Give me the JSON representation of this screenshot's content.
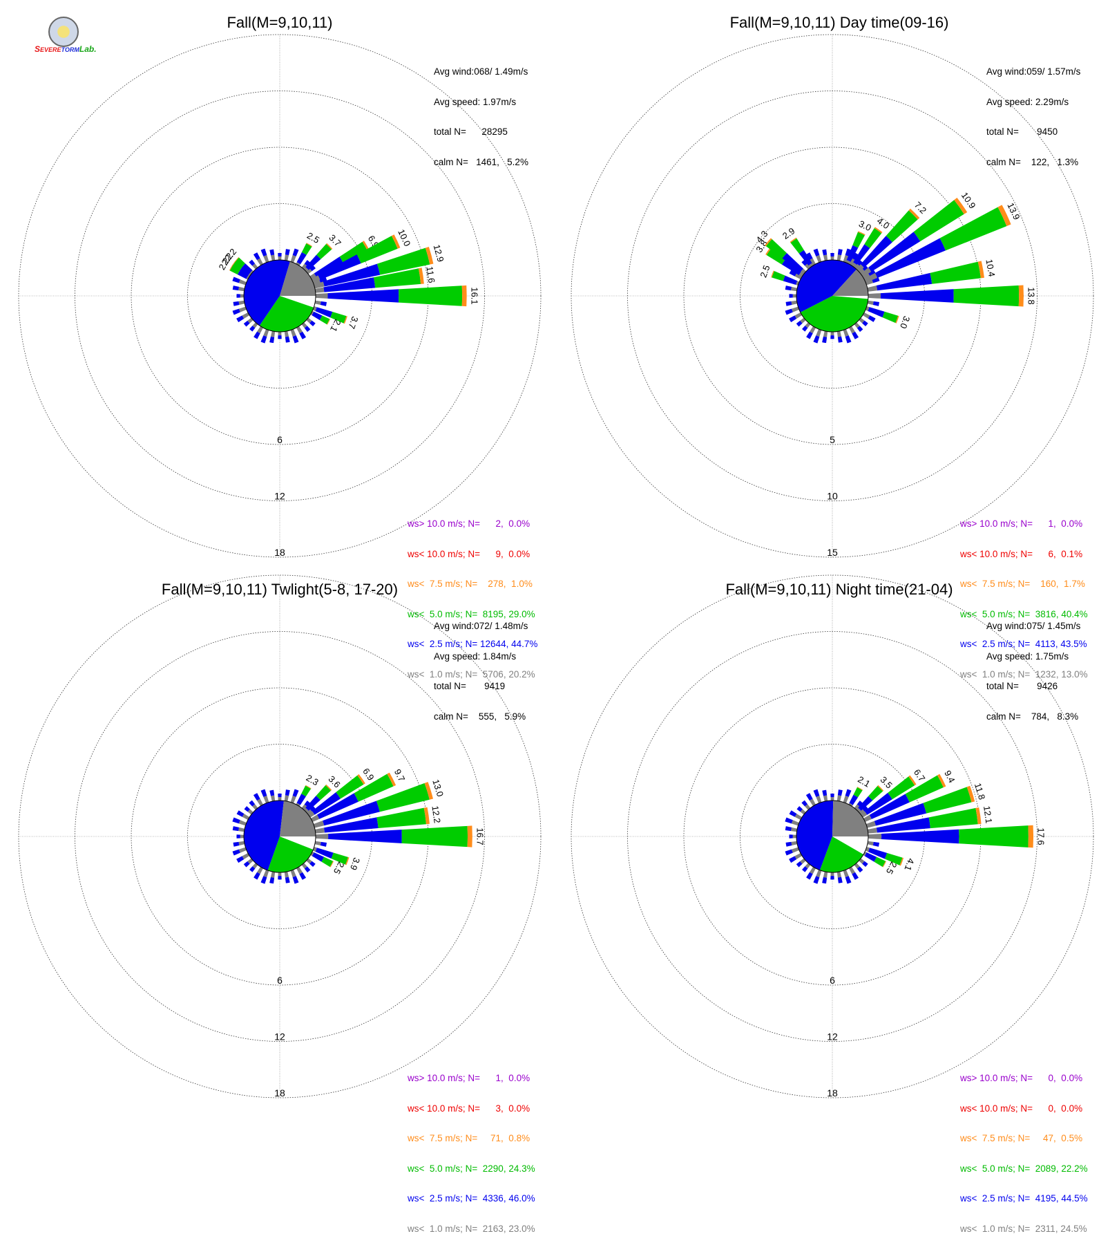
{
  "logo": {
    "brand_prefix": "S",
    "brand_severe": "EVERE",
    "brand_storm": "TORM",
    "brand_lab": "Lab.",
    "colors": [
      "#e8191b",
      "#1d2cd8",
      "#19a619"
    ]
  },
  "colors": {
    "calm": "#ffffff",
    "lt1": "#808080",
    "lt2_5": "#0000ee",
    "lt5": "#00cc00",
    "lt7_5": "#ff8c1a",
    "lt10": "#ee0000",
    "gt10": "#9900cc"
  },
  "panels": [
    {
      "title": "Fall(M=9,10,11)",
      "stats": [
        "Avg wind:068/ 1.49m/s",
        "Avg speed: 1.97m/s",
        "total N=      28295",
        "calm N=   1461,   5.2%"
      ],
      "rings": [
        "6",
        "12",
        "18"
      ],
      "legend": [
        "ws> 10.0 m/s; N=      2,  0.0%",
        "ws< 10.0 m/s; N=      9,  0.0%",
        "ws<  7.5 m/s; N=    278,  1.0%",
        "ws<  5.0 m/s; N=  8195, 29.0%",
        "ws<  2.5 m/s; N= 12644, 44.7%",
        "ws<  1.0 m/s; N=  5706, 20.2%"
      ],
      "chart_data": {
        "type": "wind-rose",
        "ring_max": 24,
        "inner_pie_percent": {
          "calm": 5.2,
          "lt1": 20.2,
          "lt2_5": 44.7,
          "lt5": 29.0
        },
        "spokes": [
          {
            "dir": 60,
            "total": 6.9,
            "label": "6.9"
          },
          {
            "dir": 65,
            "total": 10.0,
            "label": "10.0"
          },
          {
            "dir": 75,
            "total": 12.9,
            "label": "12.9"
          },
          {
            "dir": 82,
            "total": 11.6,
            "label": "11.6"
          },
          {
            "dir": 90,
            "total": 16.1,
            "label": "16.1"
          },
          {
            "dir": 110,
            "total": 3.7,
            "label": "3.7"
          },
          {
            "dir": 118,
            "total": 2.1,
            "label": "2.1"
          },
          {
            "dir": 30,
            "total": 2.5,
            "label": "2.5"
          },
          {
            "dir": 45,
            "total": 3.7,
            "label": "3.7"
          },
          {
            "dir": 300,
            "total": 2.2,
            "label": "2.2"
          },
          {
            "dir": 305,
            "total": 2.2,
            "label": "2.2"
          },
          {
            "dir": 310,
            "total": 2.2,
            "label": "2.2"
          }
        ]
      }
    },
    {
      "title": "Fall(M=9,10,11) Day time(09-16)",
      "stats": [
        "Avg wind:059/ 1.57m/s",
        "Avg speed: 2.29m/s",
        "total N=       9450",
        "calm N=    122,   1.3%"
      ],
      "rings": [
        "5",
        "10",
        "15"
      ],
      "legend": [
        "ws> 10.0 m/s; N=      1,  0.0%",
        "ws< 10.0 m/s; N=      6,  0.1%",
        "ws<  7.5 m/s; N=    160,  1.7%",
        "ws<  5.0 m/s; N=  3816, 40.4%",
        "ws<  2.5 m/s; N=  4113, 43.5%",
        "ws<  1.0 m/s; N=  1232, 13.0%"
      ],
      "chart_data": {
        "type": "wind-rose",
        "ring_max": 20,
        "inner_pie_percent": {
          "calm": 1.3,
          "lt1": 13.0,
          "lt2_5": 43.5,
          "lt5": 40.4
        },
        "spokes": [
          {
            "dir": 45,
            "total": 7.2,
            "label": "7.2"
          },
          {
            "dir": 55,
            "total": 10.9,
            "label": "10.9"
          },
          {
            "dir": 65,
            "total": 13.9,
            "label": "13.9"
          },
          {
            "dir": 80,
            "total": 10.4,
            "label": "10.4"
          },
          {
            "dir": 90,
            "total": 13.8,
            "label": "13.8"
          },
          {
            "dir": 110,
            "total": 3.0,
            "label": "3.0"
          },
          {
            "dir": 25,
            "total": 3.0,
            "label": "3.0"
          },
          {
            "dir": 35,
            "total": 4.0,
            "label": "4.0"
          },
          {
            "dir": 290,
            "total": 2.5,
            "label": "2.5"
          },
          {
            "dir": 305,
            "total": 3.8,
            "label": "3.8"
          },
          {
            "dir": 310,
            "total": 4.3,
            "label": "4.3"
          },
          {
            "dir": 325,
            "total": 2.9,
            "label": "2.9"
          }
        ]
      }
    },
    {
      "title": "Fall(M=9,10,11) Twlight(5-8, 17-20)",
      "stats": [
        "Avg wind:072/ 1.48m/s",
        "Avg speed: 1.84m/s",
        "total N=       9419",
        "calm N=    555,   5.9%"
      ],
      "rings": [
        "6",
        "12",
        "18"
      ],
      "legend": [
        "ws> 10.0 m/s; N=      1,  0.0%",
        "ws< 10.0 m/s; N=      3,  0.0%",
        "ws<  7.5 m/s; N=     71,  0.8%",
        "ws<  5.0 m/s; N=  2290, 24.3%",
        "ws<  2.5 m/s; N=  4336, 46.0%",
        "ws<  1.0 m/s; N=  2163, 23.0%"
      ],
      "chart_data": {
        "type": "wind-rose",
        "ring_max": 24,
        "inner_pie_percent": {
          "calm": 5.9,
          "lt1": 23.0,
          "lt2_5": 46.0,
          "lt5": 24.3
        },
        "spokes": [
          {
            "dir": 55,
            "total": 6.9,
            "label": "6.9"
          },
          {
            "dir": 63,
            "total": 9.7,
            "label": "9.7"
          },
          {
            "dir": 73,
            "total": 13.0,
            "label": "13.0"
          },
          {
            "dir": 82,
            "total": 12.2,
            "label": "12.2"
          },
          {
            "dir": 90,
            "total": 16.7,
            "label": "16.7"
          },
          {
            "dir": 110,
            "total": 3.9,
            "label": "3.9"
          },
          {
            "dir": 118,
            "total": 2.5,
            "label": "2.5"
          },
          {
            "dir": 30,
            "total": 2.3,
            "label": "2.3"
          },
          {
            "dir": 45,
            "total": 3.6,
            "label": "3.6"
          }
        ]
      }
    },
    {
      "title": "Fall(M=9,10,11) Night time(21-04)",
      "stats": [
        "Avg wind:075/ 1.45m/s",
        "Avg speed: 1.75m/s",
        "total N=       9426",
        "calm N=    784,   8.3%"
      ],
      "rings": [
        "6",
        "12",
        "18"
      ],
      "legend": [
        "ws> 10.0 m/s; N=      0,  0.0%",
        "ws< 10.0 m/s; N=      0,  0.0%",
        "ws<  7.5 m/s; N=     47,  0.5%",
        "ws<  5.0 m/s; N=  2089, 22.2%",
        "ws<  2.5 m/s; N=  4195, 44.5%",
        "ws<  1.0 m/s; N=  2311, 24.5%"
      ],
      "chart_data": {
        "type": "wind-rose",
        "ring_max": 24,
        "inner_pie_percent": {
          "calm": 8.3,
          "lt1": 24.5,
          "lt2_5": 44.5,
          "lt5": 22.2
        },
        "spokes": [
          {
            "dir": 55,
            "total": 6.7,
            "label": "6.7"
          },
          {
            "dir": 63,
            "total": 9.4,
            "label": "9.4"
          },
          {
            "dir": 73,
            "total": 11.8,
            "label": "11.8"
          },
          {
            "dir": 82,
            "total": 12.1,
            "label": "12.1"
          },
          {
            "dir": 90,
            "total": 17.6,
            "label": "17.6"
          },
          {
            "dir": 110,
            "total": 4.1,
            "label": "4.1"
          },
          {
            "dir": 118,
            "total": 2.5,
            "label": "2.5"
          },
          {
            "dir": 30,
            "total": 2.1,
            "label": "2.1"
          },
          {
            "dir": 45,
            "total": 3.5,
            "label": "3.5"
          }
        ]
      }
    }
  ]
}
